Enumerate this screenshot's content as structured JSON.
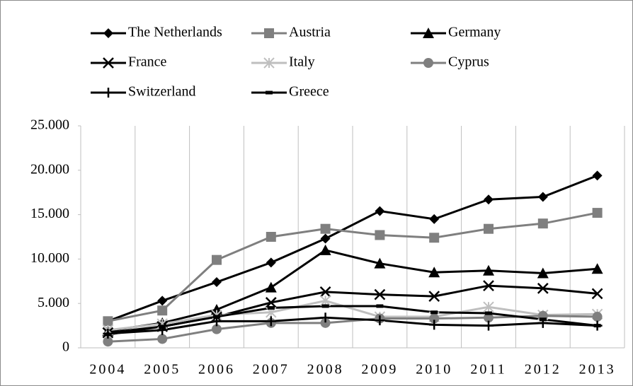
{
  "chart_data": {
    "type": "line",
    "categories": [
      "2004",
      "2005",
      "2006",
      "2007",
      "2008",
      "2009",
      "2010",
      "2011",
      "2012",
      "2013"
    ],
    "series": [
      {
        "name": "The Netherlands",
        "color": "#000000",
        "marker": "diamond",
        "values": [
          3000,
          5300,
          7400,
          9600,
          12300,
          15400,
          14500,
          16700,
          17000,
          19400
        ]
      },
      {
        "name": "Austria",
        "color": "#7f7f7f",
        "marker": "square",
        "values": [
          3000,
          4200,
          9900,
          12500,
          13400,
          12700,
          12400,
          13400,
          14000,
          15200
        ]
      },
      {
        "name": "Germany",
        "color": "#000000",
        "marker": "triangle",
        "values": [
          1900,
          2800,
          4300,
          6800,
          11000,
          9500,
          8500,
          8700,
          8400,
          8900
        ]
      },
      {
        "name": "France",
        "color": "#000000",
        "marker": "x",
        "values": [
          1700,
          2400,
          3500,
          5100,
          6300,
          6000,
          5800,
          7000,
          6700,
          6100
        ]
      },
      {
        "name": "Italy",
        "color": "#bfbfbf",
        "marker": "star",
        "values": [
          2000,
          2700,
          3700,
          4000,
          5300,
          3500,
          3500,
          4600,
          3700,
          3800
        ]
      },
      {
        "name": "Cyprus",
        "color": "#7f7f7f",
        "marker": "circle",
        "values": [
          700,
          1000,
          2100,
          2800,
          2800,
          3300,
          3300,
          3400,
          3600,
          3500
        ]
      },
      {
        "name": "Switzerland",
        "color": "#000000",
        "marker": "plus",
        "values": [
          1600,
          2000,
          3000,
          3000,
          3400,
          3100,
          2600,
          2500,
          2800,
          2500
        ]
      },
      {
        "name": "Greece",
        "color": "#000000",
        "marker": "dash",
        "values": [
          1500,
          2400,
          3500,
          4500,
          4700,
          4700,
          4000,
          3900,
          3200,
          2500
        ]
      }
    ],
    "ylim": [
      0,
      25000
    ],
    "yticks": [
      0,
      {
        "value": 5000,
        "label": "5.000"
      },
      {
        "value": 10000,
        "label": "10.000"
      },
      {
        "value": 15000,
        "label": "15.000"
      },
      {
        "value": 20000,
        "label": "20.000"
      },
      {
        "value": 25000,
        "label": "25.000"
      }
    ],
    "grid": "vertical",
    "legend": "top"
  }
}
